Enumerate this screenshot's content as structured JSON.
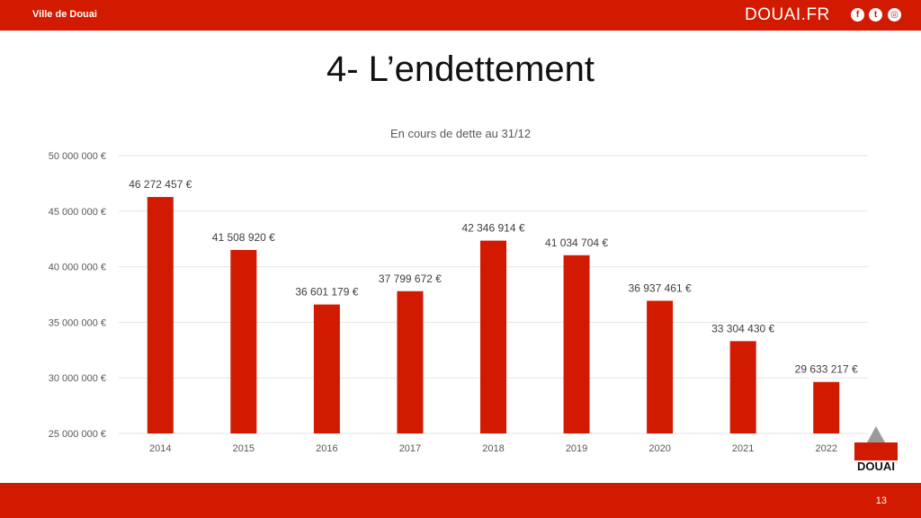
{
  "header": {
    "city_label": "Ville de Douai",
    "site_label": "DOUAI.FR",
    "social": [
      {
        "icon": "facebook-icon",
        "glyph": "f"
      },
      {
        "icon": "twitter-icon",
        "glyph": "t"
      },
      {
        "icon": "instagram-icon",
        "glyph": "◎"
      }
    ]
  },
  "slide": {
    "title": "4- L’endettement",
    "page_number": "13"
  },
  "logo": {
    "text": "DOUAI"
  },
  "colors": {
    "accent": "#d21a00",
    "bar": "#d21a00"
  },
  "chart_data": {
    "type": "bar",
    "title": "En cours de dette au 31/12",
    "xlabel": "",
    "ylabel": "",
    "categories": [
      "2014",
      "2015",
      "2016",
      "2017",
      "2018",
      "2019",
      "2020",
      "2021",
      "2022"
    ],
    "values": [
      46272457,
      41508920,
      36601179,
      37799672,
      42346914,
      41034704,
      36937461,
      33304430,
      29633217
    ],
    "data_labels": [
      "46 272 457 €",
      "41 508 920 €",
      "36 601 179 €",
      "37 799 672 €",
      "42 346 914 €",
      "41 034 704 €",
      "36 937 461 €",
      "33 304 430 €",
      "29 633 217 €"
    ],
    "ylim": [
      25000000,
      50000000
    ],
    "yticks": [
      25000000,
      30000000,
      35000000,
      40000000,
      45000000,
      50000000
    ],
    "ytick_labels": [
      "25 000 000 €",
      "30 000 000 €",
      "35 000 000 €",
      "40 000 000 €",
      "45 000 000 €",
      "50 000 000 €"
    ],
    "grid": true,
    "legend": "none"
  }
}
